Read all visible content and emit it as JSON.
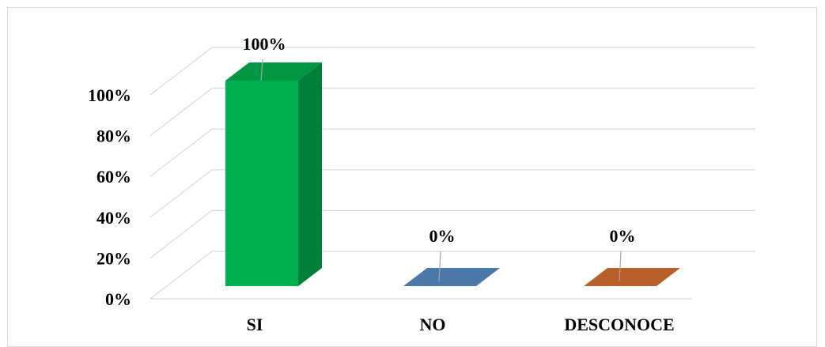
{
  "chart_data": {
    "type": "bar",
    "style": "3d-column",
    "categories": [
      "SI",
      "NO",
      "DESCONOCE"
    ],
    "values": [
      100,
      0,
      0
    ],
    "data_labels": [
      "100%",
      "0%",
      "0%"
    ],
    "y_ticks": [
      "0%",
      "20%",
      "40%",
      "60%",
      "80%",
      "100%"
    ],
    "ylim": [
      0,
      100
    ],
    "grid": true,
    "legend": "none",
    "colors": {
      "SI": "#00b050",
      "NO": "#4a78a8",
      "DESCONOCE": "#b8602a",
      "gridline": "#d9d9d9",
      "leader_line": "#a6a6a6"
    }
  }
}
